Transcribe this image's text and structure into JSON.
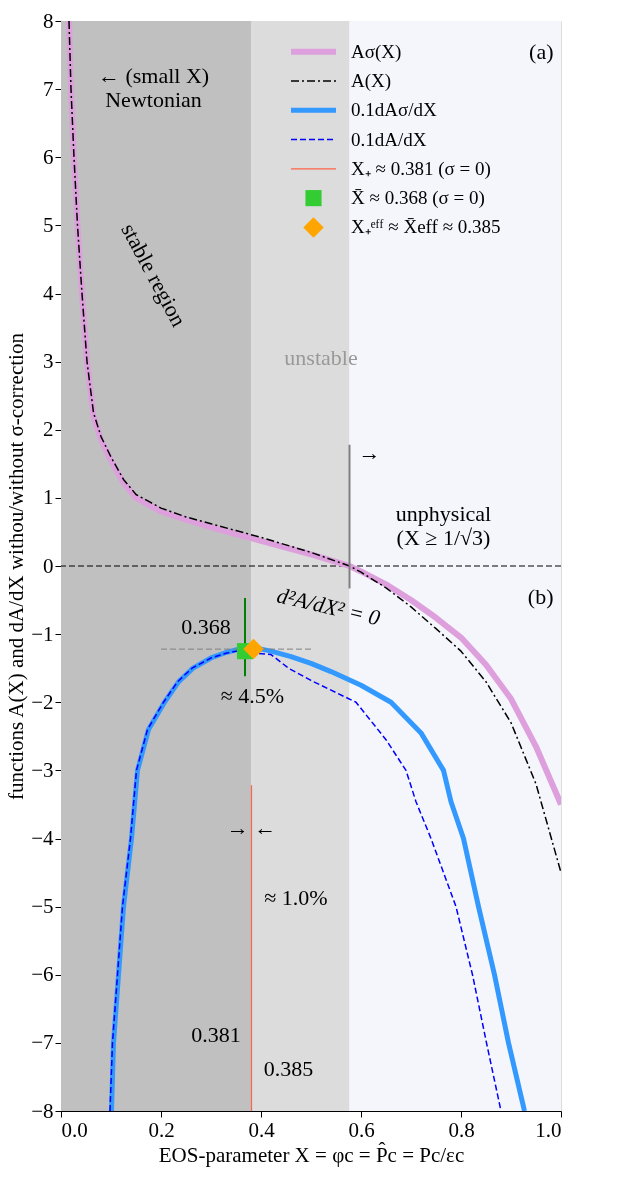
{
  "chart_data": {
    "type": "line",
    "xlabel": "EOS-parameter X = φc = P̂c = Pc/εc",
    "ylabel": "functions A(X) and dA/dX withou/without σ-correction",
    "xlim": [
      0,
      1
    ],
    "ylim": [
      -8,
      8
    ],
    "xticks": [
      {
        "value": 0,
        "label": "0.0"
      },
      0.2,
      0.4,
      0.6,
      0.8,
      {
        "value": 1,
        "label": "1.0"
      }
    ],
    "yticks": [
      -8,
      -7,
      -6,
      -5,
      -4,
      -3,
      -2,
      -1,
      0,
      1,
      2,
      3,
      4,
      5,
      6,
      7,
      8
    ],
    "grid": false,
    "legend": "top right",
    "bands": [
      {
        "axis": "x",
        "from": 0,
        "to": 0.381,
        "color": "#c0c0c0"
      },
      {
        "axis": "x",
        "from": 0.381,
        "to": 0.577,
        "color": "#dcdcdc"
      },
      {
        "axis": "x",
        "from": 0.577,
        "to": 1,
        "color": "#f5f6fc"
      }
    ],
    "ref_lines": [
      {
        "axis": "y",
        "value": 0,
        "color": "#000000",
        "line_style": "dashed"
      }
    ],
    "series": [
      {
        "name": "Aσ(X)",
        "color": "#dda0dd",
        "line_style": "solid",
        "x": [
          0.016,
          0.02,
          0.026,
          0.033,
          0.042,
          0.052,
          0.065,
          0.08,
          0.1,
          0.125,
          0.15,
          0.2,
          0.25,
          0.3,
          0.35,
          0.4,
          0.45,
          0.5,
          0.55,
          0.577,
          0.6,
          0.65,
          0.7,
          0.75,
          0.8,
          0.85,
          0.9,
          0.95,
          1.0
        ],
        "values": [
          8,
          7,
          6,
          5,
          4,
          3,
          2.2,
          1.85,
          1.55,
          1.22,
          1.0,
          0.8,
          0.68,
          0.57,
          0.47,
          0.37,
          0.27,
          0.17,
          0.06,
          0,
          -0.08,
          -0.27,
          -0.5,
          -0.76,
          -1.05,
          -1.45,
          -1.95,
          -2.65,
          -3.5
        ]
      },
      {
        "name": "A(X)",
        "color": "#000000",
        "line_style": "dashdot",
        "x": [
          0.016,
          0.02,
          0.026,
          0.033,
          0.042,
          0.052,
          0.065,
          0.08,
          0.1,
          0.125,
          0.15,
          0.2,
          0.25,
          0.3,
          0.35,
          0.4,
          0.45,
          0.5,
          0.55,
          0.577,
          0.6,
          0.65,
          0.7,
          0.75,
          0.8,
          0.85,
          0.9,
          0.95,
          1.0
        ],
        "values": [
          8,
          7,
          6,
          5,
          4,
          3,
          2.25,
          1.9,
          1.6,
          1.27,
          1.05,
          0.85,
          0.72,
          0.62,
          0.52,
          0.42,
          0.31,
          0.2,
          0.07,
          0,
          -0.09,
          -0.32,
          -0.6,
          -0.92,
          -1.25,
          -1.7,
          -2.3,
          -3.2,
          -4.5
        ]
      },
      {
        "name": "0.1dAσ/dX",
        "color": "#3399ff",
        "line_style": "solid",
        "x": [
          0.101,
          0.105,
          0.115,
          0.125,
          0.141,
          0.153,
          0.175,
          0.207,
          0.235,
          0.264,
          0.3,
          0.33,
          0.35,
          0.4,
          0.42,
          0.46,
          0.5,
          0.54,
          0.6,
          0.66,
          0.72,
          0.765,
          0.78,
          0.805,
          0.835,
          0.867,
          0.895,
          0.927
        ],
        "values": [
          -8,
          -7,
          -6,
          -5,
          -4,
          -3,
          -2.4,
          -2,
          -1.7,
          -1.5,
          -1.35,
          -1.27,
          -1.23,
          -1.22,
          -1.25,
          -1.33,
          -1.43,
          -1.55,
          -1.75,
          -2.0,
          -2.45,
          -3.0,
          -3.46,
          -4,
          -5,
          -6,
          -7,
          -8
        ]
      },
      {
        "name": "0.1dA/dX",
        "color": "#0000ff",
        "line_style": "dashed",
        "x": [
          0.098,
          0.103,
          0.113,
          0.123,
          0.139,
          0.151,
          0.173,
          0.205,
          0.233,
          0.262,
          0.3,
          0.33,
          0.35,
          0.42,
          0.455,
          0.5,
          0.59,
          0.65,
          0.69,
          0.71,
          0.74,
          0.79,
          0.823,
          0.851,
          0.88
        ],
        "values": [
          -8,
          -7,
          -6,
          -5,
          -4,
          -3,
          -2.4,
          -2,
          -1.7,
          -1.5,
          -1.35,
          -1.28,
          -1.25,
          -1.3,
          -1.5,
          -1.68,
          -2.0,
          -2.55,
          -3.0,
          -3.46,
          -4,
          -5,
          -6,
          -7,
          -8
        ]
      },
      {
        "name": "X₊ ≈ 0.381 (σ = 0)",
        "color": "#ff6347",
        "line_style": "solid",
        "x": [
          0.381,
          0.381
        ],
        "values": [
          -8,
          -3.22
        ]
      },
      {
        "name": "X̄ ≈ 0.368 (σ = 0)",
        "type": "scatter",
        "color": "#33cc33",
        "marker": "square",
        "x": [
          0.368
        ],
        "values": [
          -1.25
        ]
      },
      {
        "name": "X₊ᵉᶠᶠ ≈ X̄eff ≈ 0.385",
        "type": "scatter",
        "color": "#ffa500",
        "marker": "diamond",
        "x": [
          0.385
        ],
        "values": [
          -1.22
        ]
      },
      {
        "color": "#008000",
        "line_style": "solid",
        "x": [
          0.368,
          0.368
        ],
        "values": [
          -0.47,
          -1.62
        ]
      },
      {
        "color": "#808080",
        "line_style": "solid",
        "x": [
          0.577,
          0.577
        ],
        "values": [
          1.78,
          -0.33
        ]
      },
      {
        "color": "#808080",
        "line_style": "dashed",
        "x": [
          0.2,
          0.5
        ],
        "values": [
          -1.22,
          -1.22
        ]
      }
    ],
    "annotations": [
      "← (small X)\nNewtonian",
      "stable region",
      "unstable",
      "→",
      "unphysical\n(X ≥ 1/√3)",
      "0.368",
      "d²A/dX² = 0",
      {
        "text": "≈ 4.5%",
        "x": 0.383,
        "y": -1.91
      },
      {
        "text": "→ ←",
        "x": 0.381,
        "y": -3.85
      },
      "≈ 1.0%",
      "0.381",
      "0.385",
      "(a)",
      "(b)"
    ]
  }
}
